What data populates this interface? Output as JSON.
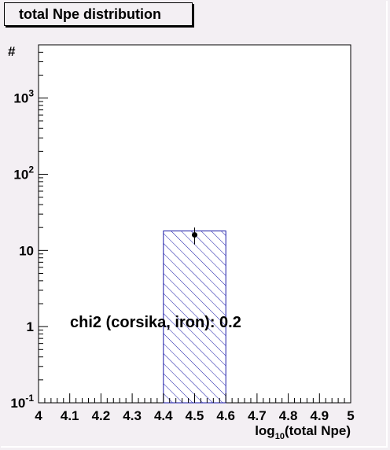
{
  "title": "total Npe distribution",
  "chart_data": {
    "type": "bar",
    "title": "total Npe distribution",
    "xlabel": "log10(total Npe)",
    "xlabel_base": "log",
    "xlabel_sub": "10",
    "xlabel_rest": "(total Npe)",
    "ylabel": "#",
    "xlim": [
      4,
      5
    ],
    "ylim": [
      0.1,
      5000
    ],
    "yscale": "log",
    "x_ticks": [
      "4",
      "4.1",
      "4.2",
      "4.3",
      "4.4",
      "4.5",
      "4.6",
      "4.7",
      "4.8",
      "4.9",
      "5"
    ],
    "y_ticks": [
      {
        "value": 0.1,
        "base": "10",
        "exp": "-1"
      },
      {
        "value": 1,
        "base": "1",
        "exp": ""
      },
      {
        "value": 10,
        "base": "10",
        "exp": ""
      },
      {
        "value": 100,
        "base": "10",
        "exp": "2"
      },
      {
        "value": 1000,
        "base": "10",
        "exp": "3"
      }
    ],
    "histogram": {
      "name": "corsika, iron",
      "bin_low": 4.4,
      "bin_high": 4.6,
      "value": 18,
      "fill": "hatched",
      "color": "#1a1aa8"
    },
    "data_points": [
      {
        "x": 4.5,
        "y": 16,
        "err_low": 12,
        "err_high": 20
      }
    ],
    "annotation": "chi2 (corsika, iron): 0.2"
  }
}
